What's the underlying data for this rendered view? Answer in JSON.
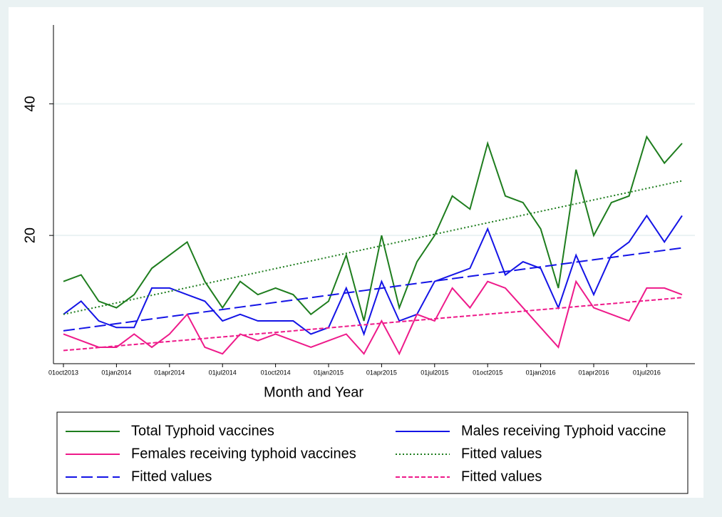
{
  "chart_data": {
    "type": "line",
    "x_label": "Month and Year",
    "categories": [
      "01oct2013",
      null,
      null,
      "01jan2014",
      null,
      null,
      "01apr2014",
      null,
      null,
      "01jul2014",
      null,
      null,
      "01oct2014",
      null,
      null,
      "01jan2015",
      null,
      null,
      "01apr2015",
      null,
      null,
      "01jul2015",
      null,
      null,
      "01oct2015",
      null,
      null,
      "01jan2016",
      null,
      null,
      "01apr2016",
      null,
      null,
      "01jul2016",
      null,
      null
    ],
    "ylim": [
      0.5,
      52
    ],
    "yticks": [
      20,
      40
    ],
    "grid": true,
    "series": [
      {
        "name": "Total Typhoid vaccines",
        "color": "#1e7d1e",
        "dash": "solid",
        "values": [
          13,
          14,
          10,
          9,
          11,
          15,
          17,
          19,
          13,
          9,
          13,
          11,
          12,
          11,
          8,
          10,
          17,
          7,
          20,
          9,
          16,
          20,
          26,
          24,
          34,
          26,
          25,
          21,
          12,
          30,
          20,
          25,
          26,
          35,
          31,
          34
        ]
      },
      {
        "name": "Males receiving Typhoid vaccine",
        "color": "#1414e6",
        "dash": "solid",
        "values": [
          8,
          10,
          7,
          6,
          6,
          12,
          12,
          11,
          10,
          7,
          8,
          7,
          7,
          7,
          5,
          6,
          12,
          5,
          13,
          7,
          8,
          13,
          14,
          15,
          21,
          14,
          16,
          15,
          9,
          17,
          11,
          17,
          19,
          23,
          19,
          23
        ]
      },
      {
        "name": "Females receiving typhoid vaccines",
        "color": "#ee1a8a",
        "dash": "solid",
        "values": [
          5,
          4,
          3,
          3,
          5,
          3,
          5,
          8,
          3,
          2,
          5,
          4,
          5,
          4,
          3,
          4,
          5,
          2,
          7,
          2,
          8,
          7,
          12,
          9,
          13,
          12,
          9,
          6,
          3,
          13,
          9,
          8,
          7,
          12,
          12,
          11
        ]
      },
      {
        "name": "Fitted values",
        "color": "#1e7d1e",
        "dash": "dot",
        "values": [
          8.0,
          8.58,
          9.16,
          9.74,
          10.32,
          10.9,
          11.48,
          12.06,
          12.64,
          13.22,
          13.8,
          14.38,
          14.96,
          15.54,
          16.12,
          16.7,
          17.28,
          17.86,
          18.44,
          19.02,
          19.6,
          20.18,
          20.76,
          21.34,
          21.92,
          22.5,
          23.08,
          23.66,
          24.24,
          24.82,
          25.4,
          25.98,
          26.56,
          27.14,
          27.72,
          28.3
        ]
      },
      {
        "name": "Fitted values",
        "color": "#1414e6",
        "dash": "longdash",
        "values": [
          5.5,
          5.86,
          6.22,
          6.58,
          6.94,
          7.3,
          7.66,
          8.02,
          8.38,
          8.74,
          9.1,
          9.46,
          9.82,
          10.18,
          10.54,
          10.9,
          11.26,
          11.62,
          11.98,
          12.34,
          12.7,
          13.06,
          13.42,
          13.78,
          14.14,
          14.5,
          14.86,
          15.22,
          15.58,
          15.94,
          16.3,
          16.66,
          17.02,
          17.38,
          17.74,
          18.1
        ]
      },
      {
        "name": "Fitted values",
        "color": "#ee1a8a",
        "dash": "dash",
        "values": [
          2.5,
          2.73,
          2.96,
          3.19,
          3.42,
          3.65,
          3.88,
          4.11,
          4.34,
          4.57,
          4.8,
          5.03,
          5.26,
          5.49,
          5.72,
          5.95,
          6.18,
          6.41,
          6.64,
          6.87,
          7.1,
          7.33,
          7.56,
          7.79,
          8.02,
          8.25,
          8.48,
          8.71,
          8.94,
          9.17,
          9.4,
          9.63,
          9.86,
          10.09,
          10.32,
          10.55
        ]
      }
    ]
  }
}
